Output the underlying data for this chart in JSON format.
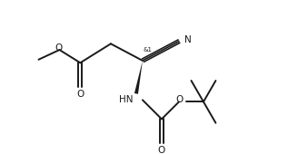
{
  "bg_color": "#ffffff",
  "line_color": "#1a1a1a",
  "line_width": 1.4,
  "figsize": [
    3.17,
    1.7
  ],
  "dpi": 100,
  "xlim": [
    0,
    10
  ],
  "ylim": [
    0,
    5.36
  ]
}
